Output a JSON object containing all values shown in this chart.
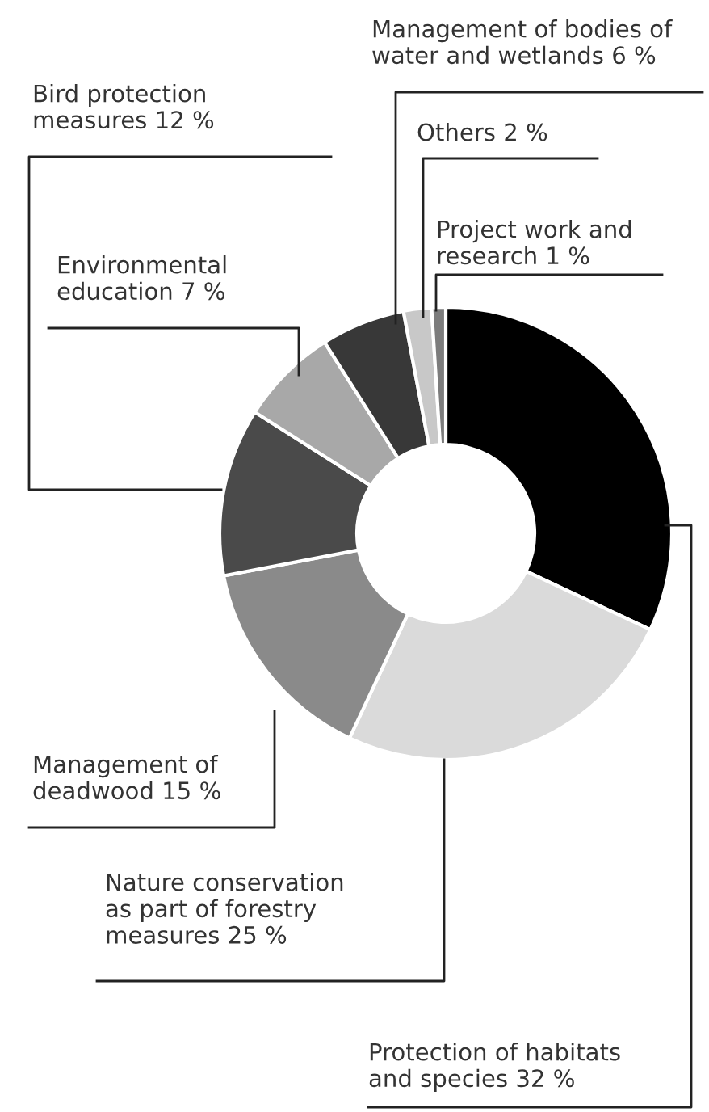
{
  "chart_data": {
    "type": "donut",
    "categories": [
      "Protection of habitats\nand species",
      "Nature conservation\nas part of forestry\nmeasures",
      "Management of\ndeadwood",
      "Bird protection\nmeasures",
      "Environmental\neducation",
      "Management of bodies of\nwater and wetlands",
      "Others",
      "Project work and\nresearch"
    ],
    "values": [
      32,
      25,
      15,
      12,
      7,
      6,
      2,
      1
    ],
    "value_labels": [
      "32 %",
      "25 %",
      "15 %",
      "12 %",
      "7 %",
      "6 %",
      "2 %",
      "1 %"
    ],
    "colors": [
      "#000000",
      "#dadada",
      "#8a8a8a",
      "#4a4a4a",
      "#a8a8a8",
      "#383838",
      "#c8c8c8",
      "#7c7c7c"
    ]
  }
}
